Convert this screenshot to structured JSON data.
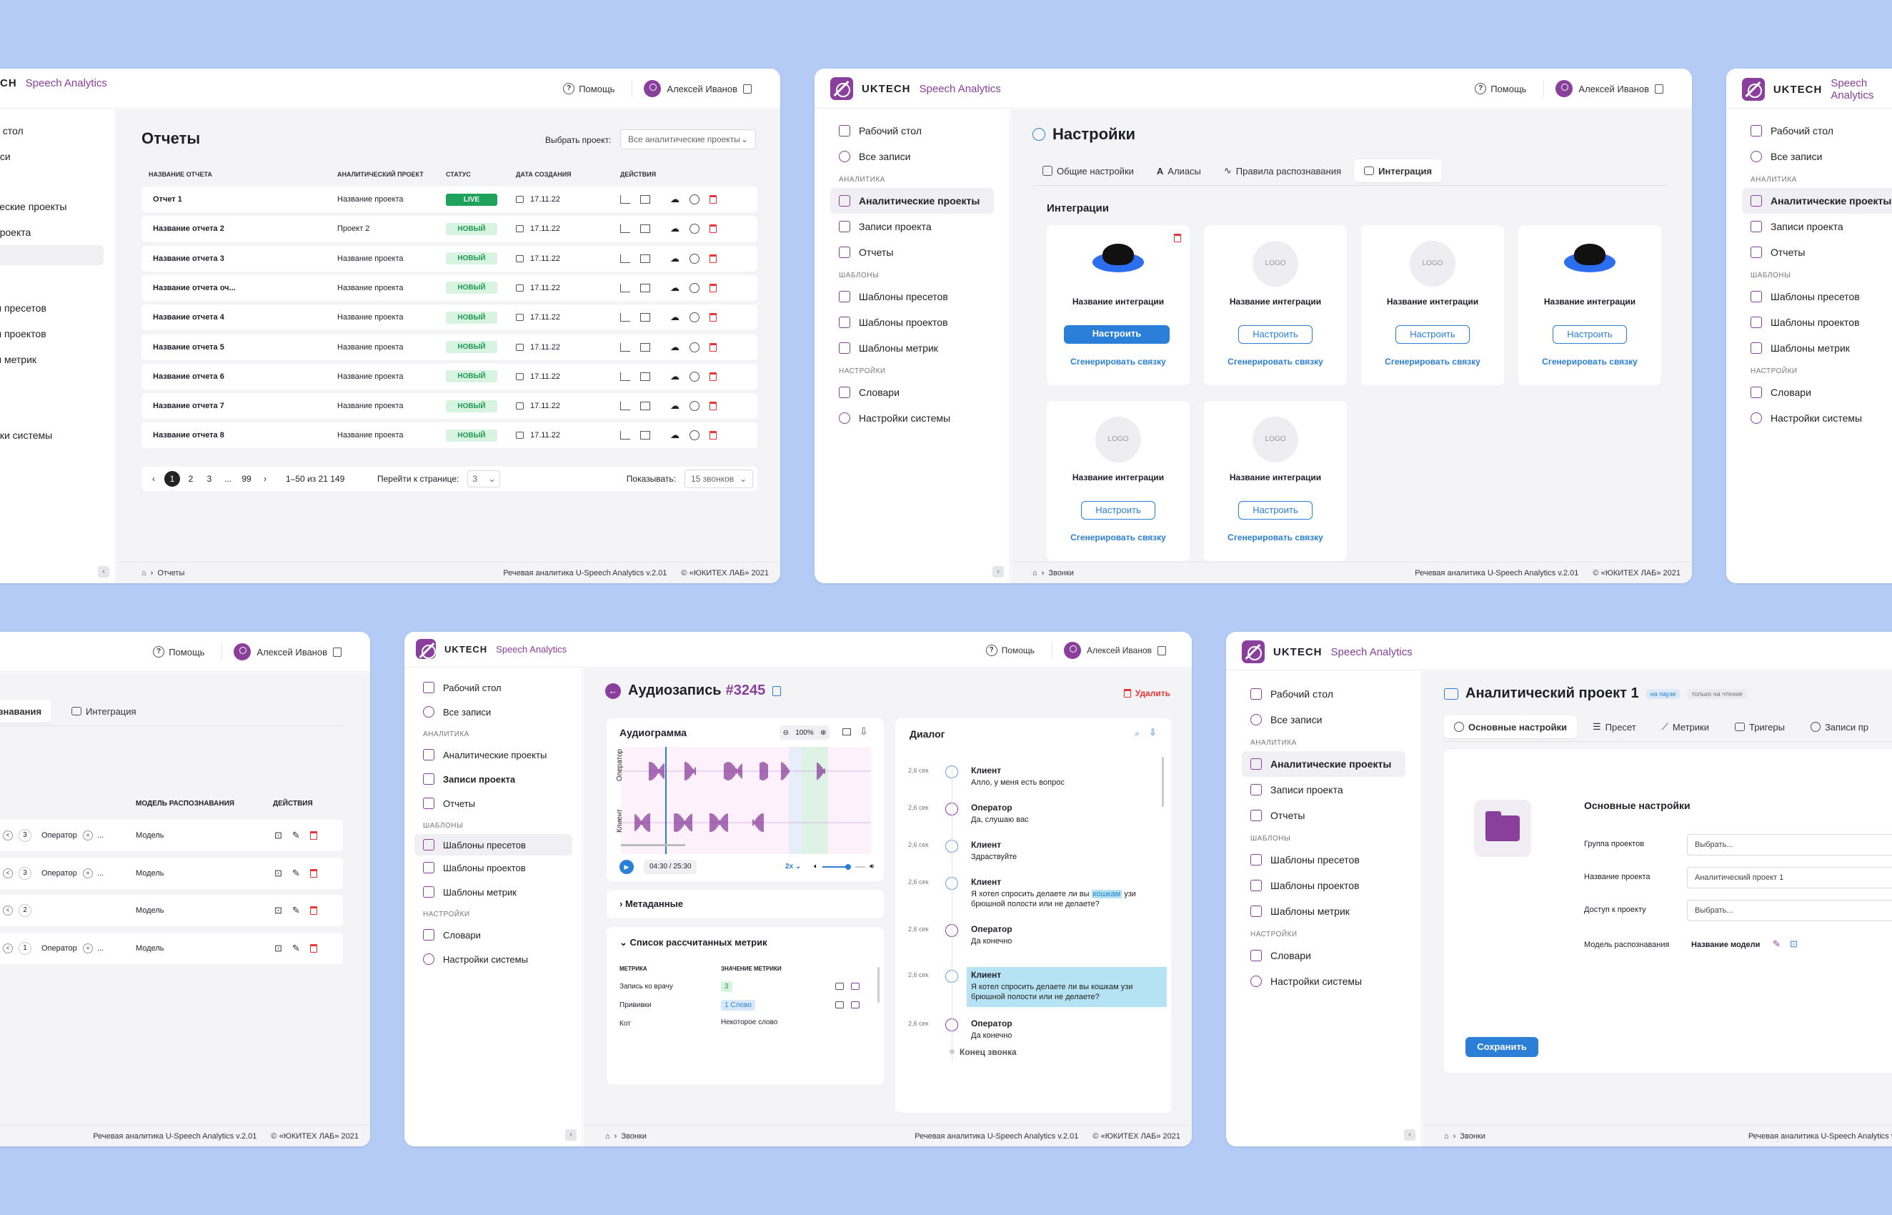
{
  "brand": {
    "name": "UKTECH",
    "product": "Speech Analytics",
    "name_partial": "CH"
  },
  "header": {
    "help": "Помощь",
    "user": "Алексей Иванов"
  },
  "nav": {
    "desktop": "Рабочий стол",
    "all_records": "Все записи",
    "sec_analytics": "АНАЛИТИКА",
    "analytic_projects": "Аналитические проекты",
    "project_records": "Записи проекта",
    "reports": "Отчеты",
    "sec_templates": "ШАБЛОНЫ",
    "preset_templates": "Шаблоны пресетов",
    "project_templates": "Шаблоны проектов",
    "metric_templates": "Шаблоны метрик",
    "sec_settings": "НАСТРОЙКИ",
    "dictionaries": "Словари",
    "system_settings": "Настройки системы"
  },
  "nav_partial": {
    "desktop": "й стол",
    "all_records": "иси",
    "analytic_projects": "ческие проекты",
    "project_records": "проекта",
    "preset_templates": "ы пресетов",
    "project_templates": "ы проектов",
    "metric_templates": "ы метрик",
    "dictionaries": "и",
    "system_settings": "йки системы"
  },
  "footer": {
    "product": "Речевая аналитика U-Speech Analytics v.2.01",
    "copyright": "© «ЮКИТЕХ ЛАБ» 2021",
    "crumb_reports": "Отчеты",
    "crumb_calls": "Звонки"
  },
  "reports": {
    "title": "Отчеты",
    "select_label": "Выбрать проект:",
    "select_value": "Все аналитические проекты",
    "columns": [
      "НАЗВАНИЕ ОТЧЕТА",
      "АНАЛИТИЧЕСКИЙ ПРОЕКТ",
      "СТАТУС",
      "ДАТА СОЗДАНИЯ",
      "ДЕЙСТВИЯ"
    ],
    "rows": [
      {
        "name": "Отчет 1",
        "project": "Название проекта",
        "status": "LIVE",
        "date": "17.11.22"
      },
      {
        "name": "Название отчета 2",
        "project": "Проект 2",
        "status": "НОВЫЙ",
        "date": "17.11.22"
      },
      {
        "name": "Название отчета 3",
        "project": "Название проекта",
        "status": "НОВЫЙ",
        "date": "17.11.22"
      },
      {
        "name": "Название отчета оч...",
        "project": "Название проекта",
        "status": "НОВЫЙ",
        "date": "17.11.22"
      },
      {
        "name": "Название отчета 4",
        "project": "Название проекта",
        "status": "НОВЫЙ",
        "date": "17.11.22"
      },
      {
        "name": "Название отчета 5",
        "project": "Название проекта",
        "status": "НОВЫЙ",
        "date": "17.11.22"
      },
      {
        "name": "Название отчета 6",
        "project": "Название проекта",
        "status": "НОВЫЙ",
        "date": "17.11.22"
      },
      {
        "name": "Название отчета 7",
        "project": "Название проекта",
        "status": "НОВЫЙ",
        "date": "17.11.22"
      },
      {
        "name": "Название отчета 8",
        "project": "Название проекта",
        "status": "НОВЫЙ",
        "date": "17.11.22"
      }
    ],
    "pages": [
      "1",
      "2",
      "3",
      "...",
      "99"
    ],
    "range": "1–50 из 21 149",
    "goto_label": "Перейти к странице:",
    "goto_value": "3",
    "show_label": "Показывать:",
    "show_value": "15 звонков"
  },
  "settings": {
    "title": "Настройки",
    "tabs": [
      "Общие настройки",
      "Алиасы",
      "Правила распознавания",
      "Интеграция"
    ],
    "section": "Интеграции",
    "card_name": "Название интеграции",
    "configure": "Настроить",
    "generate": "Сгенерировать связку",
    "logo_placeholder": "LOGO"
  },
  "presets": {
    "tab_partial": "знавания",
    "tab_integration": "Интеграция",
    "col_model": "МОДЕЛЬ РАСПОЗНАВАНИЯ",
    "col_actions": "ДЕЙСТВИЯ",
    "rows": [
      {
        "num": "3",
        "role": "Оператор",
        "model": "Модель"
      },
      {
        "num": "3",
        "role": "Оператор",
        "model": "Модель"
      },
      {
        "num": "2",
        "role": "",
        "model": "Модель"
      },
      {
        "num": "1",
        "role": "Оператор",
        "model": "Модель"
      }
    ]
  },
  "audio": {
    "title": "Аудиозапись",
    "id": "#3245",
    "delete": "Удалить",
    "gram": "Аудиограмма",
    "zoom": "100%",
    "ch_operator": "Оператор",
    "ch_client": "Клиент",
    "time": "04:30 / 25:30",
    "speed": "2x",
    "progress": 0.18,
    "metadata": "Метаданные",
    "metrics_title": "Список рассчитанных метрик",
    "m_col1": "МЕТРИКА",
    "m_col2": "ЗНАЧЕНИЕ МЕТРИКИ",
    "metrics": [
      {
        "name": "Запись ко врачу",
        "value": "3"
      },
      {
        "name": "Прививки",
        "value": "1 Слово"
      },
      {
        "name": "Кот",
        "value": "Некоторое слово"
      }
    ],
    "dialog_title": "Диалог",
    "end": "Конец звонка",
    "dialog": [
      {
        "t": "2,6 сек",
        "who": "Клиент",
        "text": "Алло, у меня есть вопрос",
        "op": false
      },
      {
        "t": "2,6 сек",
        "who": "Оператор",
        "text": "Да, слушаю вас",
        "op": true
      },
      {
        "t": "2,6 сек",
        "who": "Клиент",
        "text": "Здраствуйте",
        "op": false
      },
      {
        "t": "2,6 сек",
        "who": "Клиент",
        "text_a": "Я хотел спросить делаете ли вы",
        "hl": "кошкам",
        "text_b": "узи брюшной полости или не делаете?",
        "op": false
      },
      {
        "t": "2,6 сек",
        "who": "Оператор",
        "text": "Да конечно",
        "op": true
      },
      {
        "t": "2,6 сек",
        "who": "Клиент",
        "text": "Я котел спросить делаете ли вы кошкам узи брюшной полости или не делаете?",
        "op": false,
        "sel": true
      },
      {
        "t": "2,6 сек",
        "who": "Оператор",
        "text": "Да конечно",
        "op": true
      }
    ]
  },
  "project": {
    "title": "Аналитический проект 1",
    "badge_pause": "на паузе",
    "badge_read": "только на чтение",
    "tabs": [
      "Основные настройки",
      "Пресет",
      "Метрики",
      "Тригеры",
      "Записи пр"
    ],
    "section": "Основные настройки",
    "fields": [
      {
        "label": "Группа проектов",
        "value": "Выбрать..."
      },
      {
        "label": "Название проекта",
        "value": "Аналитический проект 1"
      },
      {
        "label": "Доступ к проекту",
        "value": "Выбрать..."
      }
    ],
    "model_label": "Модель распознавания",
    "model_value": "Название модели",
    "save": "Сохранить"
  },
  "colors": {
    "accent": "#8a3f9c",
    "primary": "#2b7fd6",
    "live": "#1fa35b",
    "danger": "#e33"
  }
}
